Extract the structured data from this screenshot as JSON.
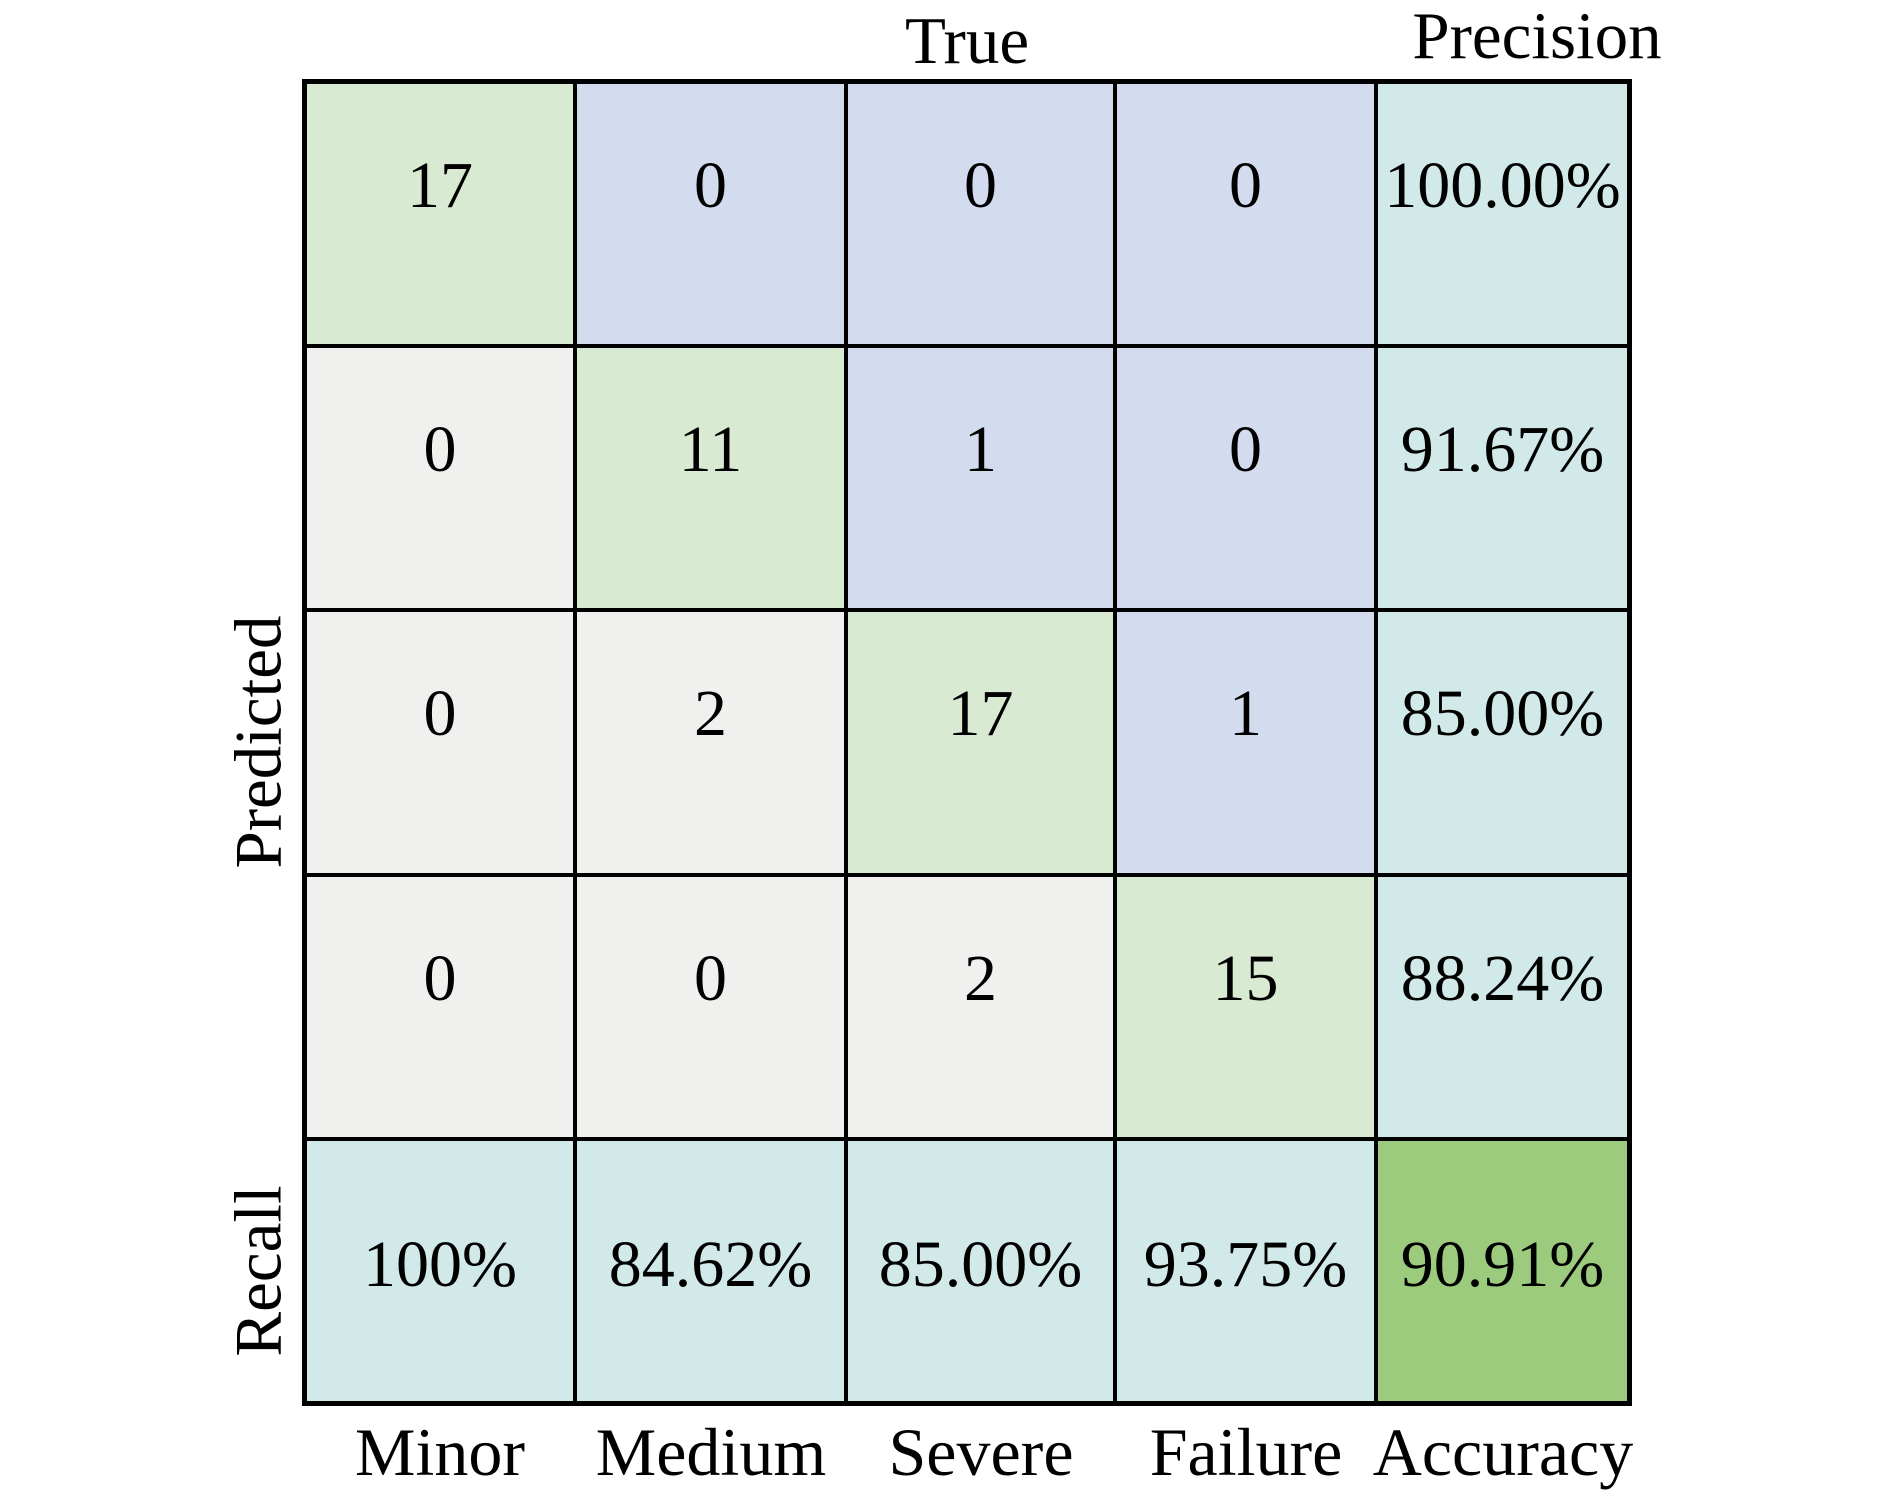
{
  "labels": {
    "true_header": "True",
    "precision_header": "Precision",
    "predicted_axis": "Predicted",
    "recall_axis": "Recall"
  },
  "ticks": [
    "Minor",
    "Medium",
    "Severe",
    "Failure",
    "Accuracy"
  ],
  "palette": {
    "diagonal": "#d9ead3",
    "upper": "#d3dcef",
    "lower": "#f0f0ef",
    "metric": "#d1e9e8",
    "accuracy": "#9dcb7e",
    "border": "#000000",
    "text": "#000000"
  },
  "grid": {
    "rows": [
      {
        "cells": [
          {
            "text": "17",
            "role": "diagonal"
          },
          {
            "text": "0",
            "role": "upper"
          },
          {
            "text": "0",
            "role": "upper"
          },
          {
            "text": "0",
            "role": "upper"
          },
          {
            "text": "100.00%",
            "role": "metric"
          }
        ]
      },
      {
        "cells": [
          {
            "text": "0",
            "role": "lower"
          },
          {
            "text": "11",
            "role": "diagonal"
          },
          {
            "text": "1",
            "role": "upper"
          },
          {
            "text": "0",
            "role": "upper"
          },
          {
            "text": "91.67%",
            "role": "metric"
          }
        ]
      },
      {
        "cells": [
          {
            "text": "0",
            "role": "lower"
          },
          {
            "text": "2",
            "role": "lower"
          },
          {
            "text": "17",
            "role": "diagonal"
          },
          {
            "text": "1",
            "role": "upper"
          },
          {
            "text": "85.00%",
            "role": "metric"
          }
        ]
      },
      {
        "cells": [
          {
            "text": "0",
            "role": "lower"
          },
          {
            "text": "0",
            "role": "lower"
          },
          {
            "text": "2",
            "role": "lower"
          },
          {
            "text": "15",
            "role": "diagonal"
          },
          {
            "text": "88.24%",
            "role": "metric"
          }
        ]
      },
      {
        "cells": [
          {
            "text": "100%",
            "role": "metric"
          },
          {
            "text": "84.62%",
            "role": "metric"
          },
          {
            "text": "85.00%",
            "role": "metric"
          },
          {
            "text": "93.75%",
            "role": "metric"
          },
          {
            "text": "90.91%",
            "role": "accuracy"
          }
        ]
      }
    ]
  },
  "chart_data": {
    "type": "heatmap",
    "subtype": "confusion_matrix",
    "title": "",
    "x_axis_label": "True",
    "y_axis_label": "Predicted",
    "classes": [
      "Minor",
      "Medium",
      "Severe",
      "Failure"
    ],
    "matrix_rows_predicted": [
      [
        17,
        0,
        0,
        0
      ],
      [
        0,
        11,
        1,
        0
      ],
      [
        0,
        2,
        17,
        1
      ],
      [
        0,
        0,
        2,
        15
      ]
    ],
    "precision_per_row": [
      "100.00%",
      "91.67%",
      "85.00%",
      "88.24%"
    ],
    "recall_per_column": [
      "100%",
      "84.62%",
      "85.00%",
      "93.75%"
    ],
    "overall_accuracy": "90.91%",
    "precision_column_header": "Precision",
    "recall_row_header": "Recall",
    "accuracy_cell_label": "Accuracy",
    "legend": "none",
    "grid_lines": "black cell borders"
  }
}
